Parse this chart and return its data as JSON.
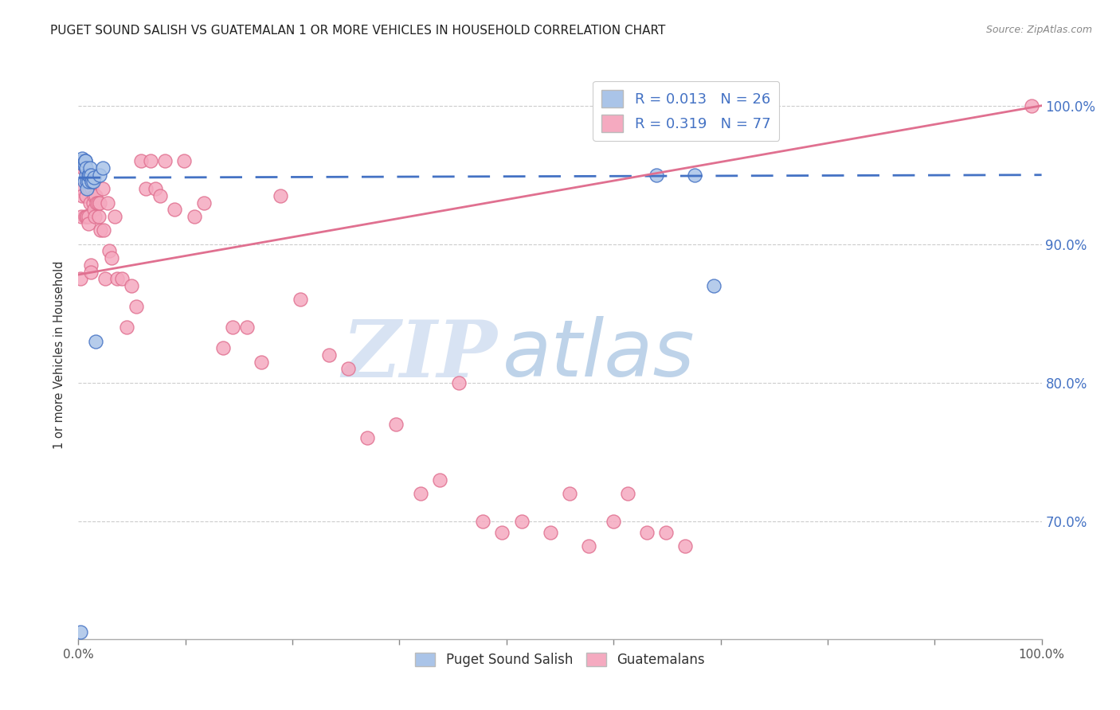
{
  "title": "PUGET SOUND SALISH VS GUATEMALAN 1 OR MORE VEHICLES IN HOUSEHOLD CORRELATION CHART",
  "source": "Source: ZipAtlas.com",
  "ylabel": "1 or more Vehicles in Household",
  "yticks_right": [
    "100.0%",
    "90.0%",
    "80.0%",
    "70.0%"
  ],
  "ytick_values": [
    1.0,
    0.9,
    0.8,
    0.7
  ],
  "legend_label1": "Puget Sound Salish",
  "legend_label2": "Guatemalans",
  "r1": 0.013,
  "n1": 26,
  "r2": 0.319,
  "n2": 77,
  "color1": "#aac4e8",
  "color2": "#f5aac0",
  "line1_color": "#4472c4",
  "line2_color": "#e07090",
  "bg_color": "#ffffff",
  "watermark_zip": "ZIP",
  "watermark_atlas": "atlas",
  "xlim": [
    0.0,
    1.0
  ],
  "ylim": [
    0.615,
    1.025
  ],
  "puget_x": [
    0.002,
    0.003,
    0.004,
    0.005,
    0.006,
    0.006,
    0.007,
    0.007,
    0.008,
    0.008,
    0.009,
    0.009,
    0.01,
    0.01,
    0.011,
    0.012,
    0.013,
    0.014,
    0.015,
    0.016,
    0.018,
    0.022,
    0.025,
    0.6,
    0.64,
    0.66
  ],
  "puget_y": [
    0.62,
    0.96,
    0.962,
    0.958,
    0.945,
    0.958,
    0.96,
    0.96,
    0.95,
    0.955,
    0.945,
    0.94,
    0.945,
    0.95,
    0.95,
    0.955,
    0.95,
    0.945,
    0.945,
    0.948,
    0.83,
    0.95,
    0.955,
    0.95,
    0.95,
    0.87
  ],
  "guatemalan_x": [
    0.002,
    0.003,
    0.004,
    0.004,
    0.005,
    0.006,
    0.006,
    0.007,
    0.007,
    0.008,
    0.008,
    0.009,
    0.009,
    0.01,
    0.01,
    0.011,
    0.012,
    0.013,
    0.013,
    0.014,
    0.015,
    0.016,
    0.016,
    0.017,
    0.018,
    0.019,
    0.02,
    0.021,
    0.022,
    0.023,
    0.025,
    0.026,
    0.028,
    0.03,
    0.032,
    0.034,
    0.038,
    0.04,
    0.045,
    0.05,
    0.055,
    0.06,
    0.065,
    0.07,
    0.075,
    0.08,
    0.085,
    0.09,
    0.1,
    0.11,
    0.12,
    0.13,
    0.15,
    0.16,
    0.175,
    0.19,
    0.21,
    0.23,
    0.26,
    0.28,
    0.3,
    0.33,
    0.355,
    0.375,
    0.395,
    0.42,
    0.44,
    0.46,
    0.49,
    0.51,
    0.53,
    0.555,
    0.57,
    0.59,
    0.61,
    0.63,
    0.99
  ],
  "guatemalan_y": [
    0.875,
    0.92,
    0.94,
    0.935,
    0.955,
    0.96,
    0.96,
    0.955,
    0.92,
    0.935,
    0.935,
    0.92,
    0.92,
    0.92,
    0.915,
    0.94,
    0.93,
    0.885,
    0.88,
    0.94,
    0.93,
    0.935,
    0.925,
    0.92,
    0.935,
    0.93,
    0.93,
    0.92,
    0.93,
    0.91,
    0.94,
    0.91,
    0.875,
    0.93,
    0.895,
    0.89,
    0.92,
    0.875,
    0.875,
    0.84,
    0.87,
    0.855,
    0.96,
    0.94,
    0.96,
    0.94,
    0.935,
    0.96,
    0.925,
    0.96,
    0.92,
    0.93,
    0.825,
    0.84,
    0.84,
    0.815,
    0.935,
    0.86,
    0.82,
    0.81,
    0.76,
    0.77,
    0.72,
    0.73,
    0.8,
    0.7,
    0.692,
    0.7,
    0.692,
    0.72,
    0.682,
    0.7,
    0.72,
    0.692,
    0.692,
    0.682,
    1.0
  ],
  "line1_x": [
    0.0,
    1.0
  ],
  "line1_y": [
    0.948,
    0.95
  ],
  "line2_x": [
    0.0,
    1.0
  ],
  "line2_y": [
    0.878,
    1.0
  ]
}
